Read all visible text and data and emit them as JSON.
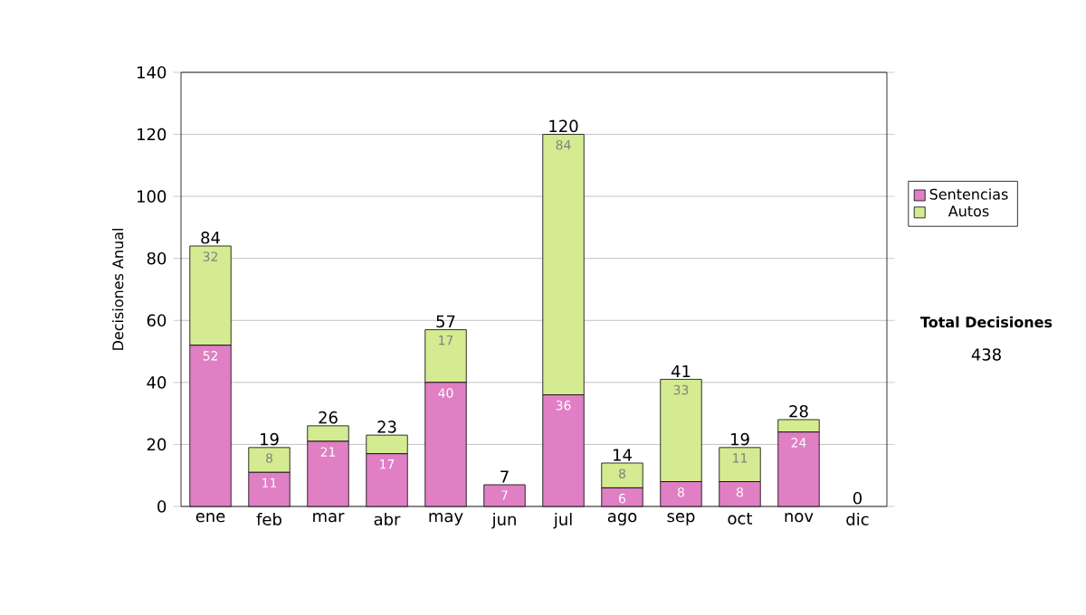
{
  "chart_data": {
    "type": "bar",
    "stacked": true,
    "ylabel": "Decisiones Anual",
    "categories": [
      "ene",
      "feb",
      "mar",
      "abr",
      "may",
      "jun",
      "jul",
      "ago",
      "sep",
      "oct",
      "nov",
      "dic"
    ],
    "series": [
      {
        "name": "Sentencias",
        "color": "#e07fc4",
        "values": [
          52,
          11,
          21,
          17,
          40,
          7,
          36,
          6,
          8,
          8,
          24,
          0
        ],
        "value_labels": [
          "52",
          "11",
          "21",
          "17",
          "40",
          "7",
          "36",
          "6",
          "8",
          "8",
          "24",
          null
        ]
      },
      {
        "name": "Autos",
        "color": "#d4eb91",
        "values": [
          32,
          8,
          5,
          6,
          17,
          0,
          84,
          8,
          33,
          11,
          4,
          0
        ],
        "value_labels": [
          "32",
          "8",
          null,
          null,
          "17",
          null,
          "84",
          "8",
          "33",
          "11",
          null,
          null
        ]
      }
    ],
    "totals": [
      "84",
      "19",
      "26",
      "23",
      "57",
      "7",
      "120",
      "14",
      "41",
      "19",
      "28",
      "0"
    ],
    "ylim": [
      0,
      140
    ],
    "yticks": [
      0,
      20,
      40,
      60,
      80,
      100,
      120,
      140
    ],
    "grid": "y",
    "legend": "right",
    "annotations": [
      "Total Decisiones",
      "438"
    ]
  }
}
